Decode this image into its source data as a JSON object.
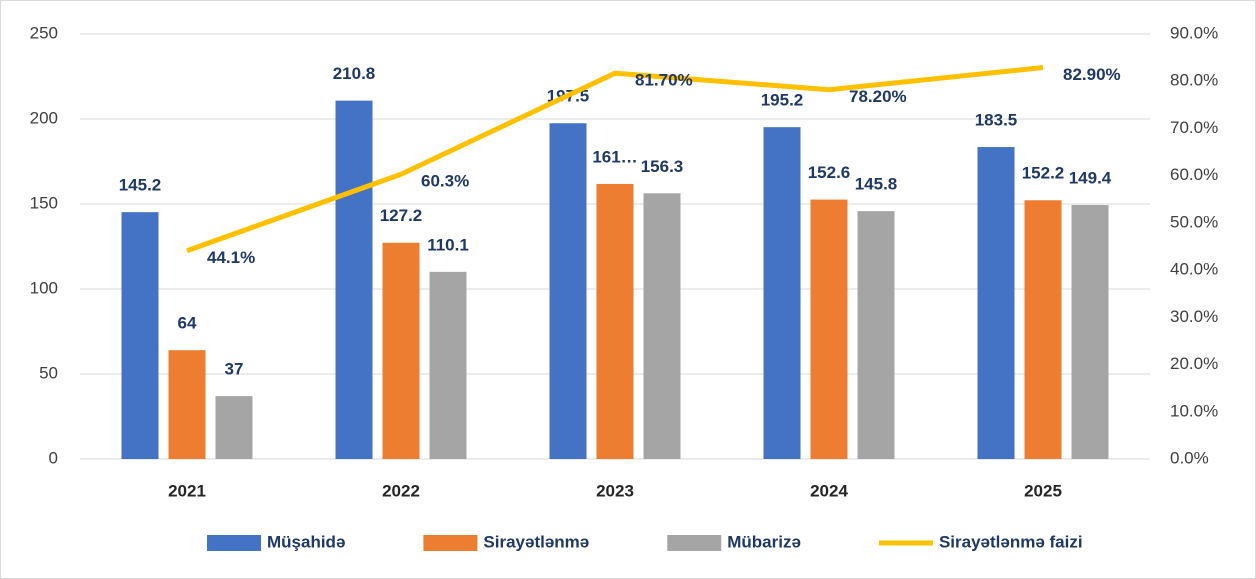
{
  "chart_data": {
    "type": "bar",
    "categories": [
      "2021",
      "2022",
      "2023",
      "2024",
      "2025"
    ],
    "series": [
      {
        "name": "Müşahidə",
        "color": "#4472c4",
        "values": [
          145.2,
          210.8,
          197.5,
          195.2,
          183.5
        ]
      },
      {
        "name": "Sirayətlənmə",
        "color": "#ed7d31",
        "values": [
          64,
          127.2,
          161.8,
          152.6,
          152.2
        ],
        "value_labels": [
          "64",
          "127.2",
          "161…",
          "152.6",
          "152.2"
        ]
      },
      {
        "name": "Mübarizə",
        "color": "#a5a5a5",
        "values": [
          37,
          110.1,
          156.3,
          145.8,
          149.4
        ]
      },
      {
        "name": "Sirayətlənmə faizi",
        "color": "#ffc000",
        "type": "line",
        "axis": "y2",
        "values": [
          44.1,
          60.3,
          81.7,
          78.2,
          82.9
        ],
        "value_labels": [
          "44.1%",
          "60.3%",
          "81.70%",
          "78.20%",
          "82.90%"
        ]
      }
    ],
    "ylim": [
      0,
      250
    ],
    "yticks": [
      0,
      50,
      100,
      150,
      200,
      250
    ],
    "y2lim": [
      0,
      90
    ],
    "y2ticks": [
      {
        "value": 0,
        "label": "0.0%"
      },
      {
        "value": 10,
        "label": "10.0%"
      },
      {
        "value": 20,
        "label": "20.0%"
      },
      {
        "value": 30,
        "label": "30.0%"
      },
      {
        "value": 40,
        "label": "40.0%"
      },
      {
        "value": 50,
        "label": "50.0%"
      },
      {
        "value": 60,
        "label": "60.0%"
      },
      {
        "value": 70,
        "label": "70.0%"
      },
      {
        "value": 80,
        "label": "80.0%"
      },
      {
        "value": 90,
        "label": "90.0%"
      }
    ],
    "grid": true,
    "legend": "bottom"
  }
}
